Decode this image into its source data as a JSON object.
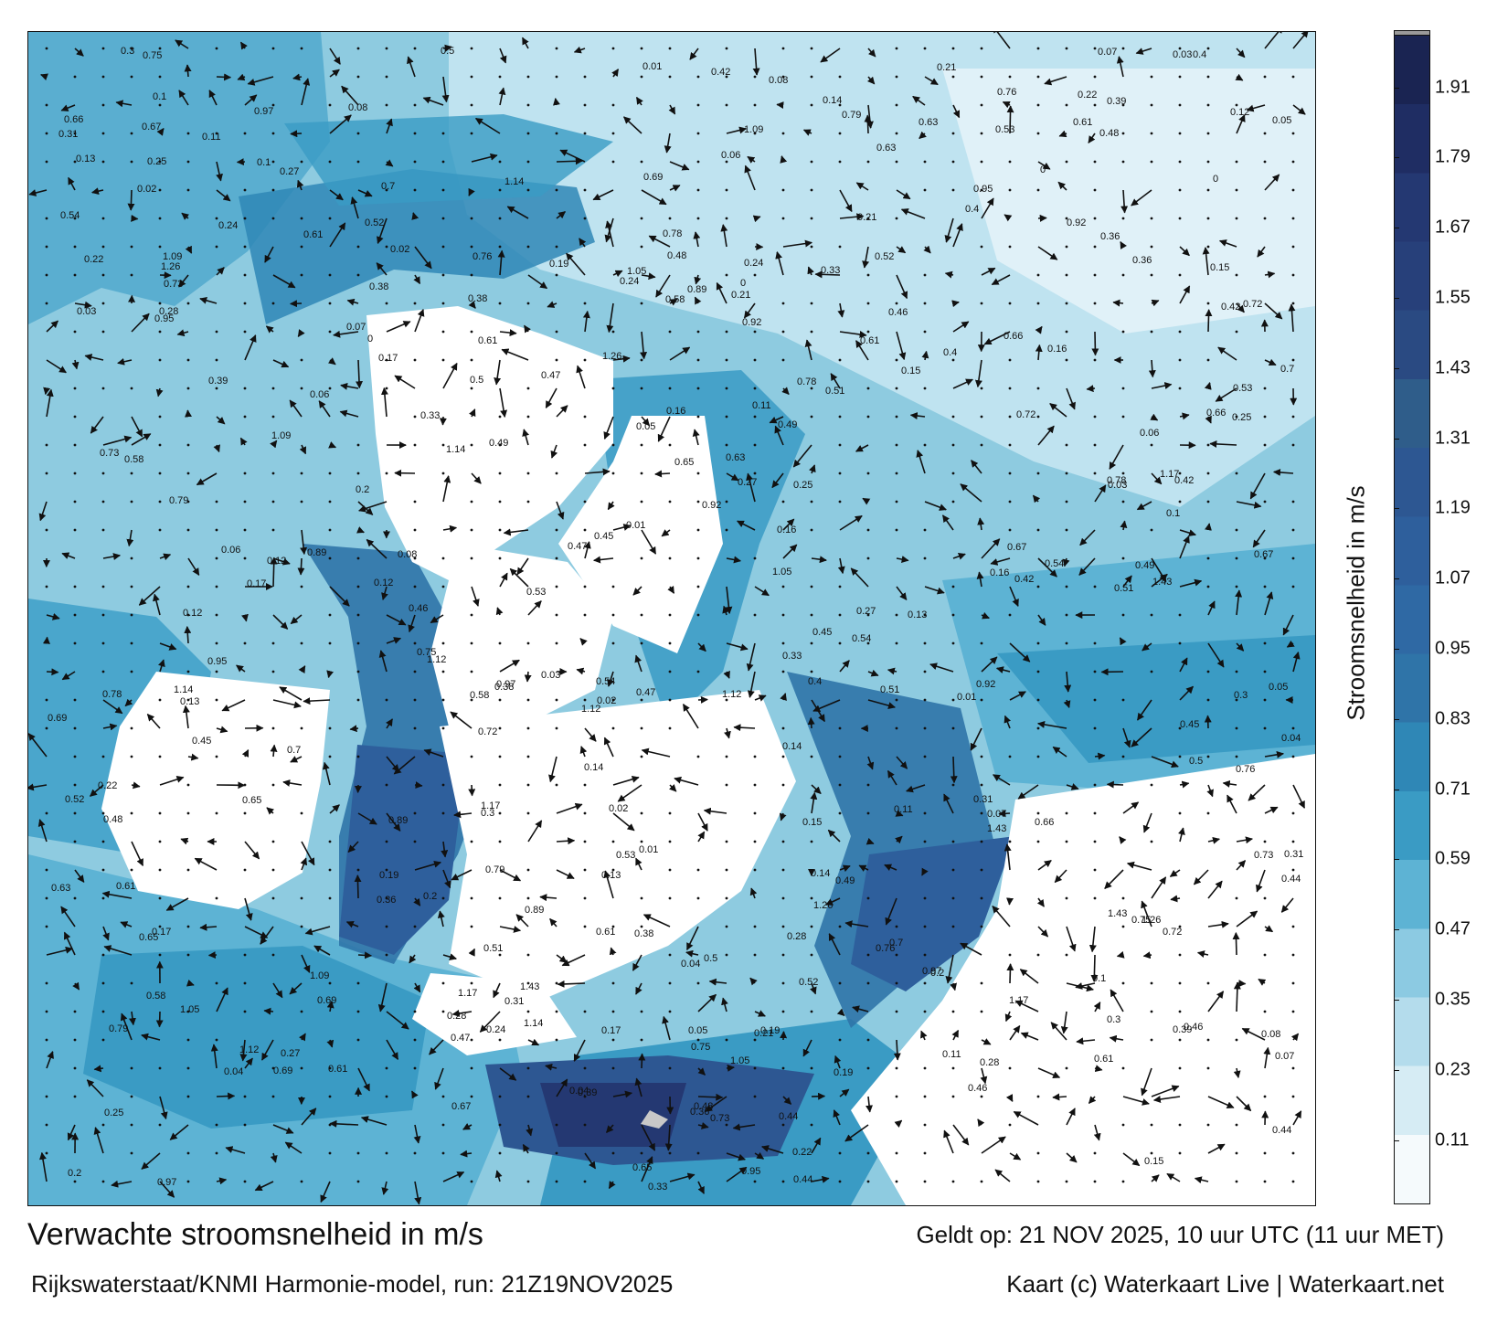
{
  "title": "Verwachte stroomsnelheid in m/s",
  "model": "Rijkswaterstaat/KNMI Harmonie-model, run: 21Z19NOV2025",
  "valid_time": "Geldt op: 21 NOV 2025, 10 uur UTC (11 uur MET)",
  "credit": "Kaart (c) Waterkaart Live | Waterkaart.net",
  "colorbar": {
    "label": "Stroomsnelheid in m/s",
    "ticks": [
      "0.11",
      "0.23",
      "0.35",
      "0.47",
      "0.59",
      "0.71",
      "0.83",
      "0.95",
      "1.07",
      "1.19",
      "1.31",
      "1.43",
      "1.55",
      "1.67",
      "1.79",
      "1.91"
    ],
    "colors": [
      "#f5fafc",
      "#d6ecf4",
      "#b4dcec",
      "#8ccae2",
      "#5db3d4",
      "#3a9bc4",
      "#2f87b6",
      "#2f74a8",
      "#2f69a4",
      "#2e5f9c",
      "#2d5792",
      "#2f5d8a",
      "#2a4a82",
      "#27407a",
      "#243872",
      "#1f2d63",
      "#1a2452"
    ],
    "range_min": 0,
    "range_max": 2.0
  },
  "sample_labels": [
    {
      "t": "0.28"
    },
    {
      "t": "0.25"
    },
    {
      "t": "0.22"
    },
    {
      "t": "0.21"
    },
    {
      "t": "0.19"
    },
    {
      "t": "0.16"
    },
    {
      "t": "0.17"
    },
    {
      "t": "0.14"
    },
    {
      "t": "0.11"
    },
    {
      "t": "0.12"
    },
    {
      "t": "0.42"
    },
    {
      "t": "0.44"
    },
    {
      "t": "0.49"
    },
    {
      "t": "0.63"
    },
    {
      "t": "0.65"
    },
    {
      "t": "0.67"
    },
    {
      "t": "0.61"
    },
    {
      "t": "0.52"
    },
    {
      "t": "0.48"
    },
    {
      "t": "0.39"
    },
    {
      "t": "0.36"
    },
    {
      "t": "0.45"
    },
    {
      "t": "0.46"
    },
    {
      "t": "0.38"
    },
    {
      "t": "0.33"
    },
    {
      "t": "0.31"
    },
    {
      "t": "0.92"
    },
    {
      "t": "0.72"
    },
    {
      "t": "0.7"
    },
    {
      "t": "0.51"
    },
    {
      "t": "0.89"
    },
    {
      "t": "0.78"
    },
    {
      "t": "0.97"
    },
    {
      "t": "0.95"
    },
    {
      "t": "1.09"
    },
    {
      "t": "1.12"
    },
    {
      "t": "0.76"
    },
    {
      "t": "0.47"
    },
    {
      "t": "1.14"
    },
    {
      "t": "1.17"
    },
    {
      "t": "1.26"
    },
    {
      "t": "1.43"
    },
    {
      "t": "1.05"
    },
    {
      "t": "0.73"
    },
    {
      "t": "0.69"
    },
    {
      "t": "0.79"
    },
    {
      "t": "0.75"
    },
    {
      "t": "0.66"
    },
    {
      "t": "0.58"
    },
    {
      "t": "0.61"
    },
    {
      "t": "0.5"
    },
    {
      "t": "0.53"
    },
    {
      "t": "0.54"
    },
    {
      "t": "0.4"
    },
    {
      "t": "0.3"
    },
    {
      "t": "0.27"
    },
    {
      "t": "0.24"
    },
    {
      "t": "0.2"
    },
    {
      "t": "0.15"
    },
    {
      "t": "0.1"
    },
    {
      "t": "0.08"
    },
    {
      "t": "0.07"
    },
    {
      "t": "0.06"
    },
    {
      "t": "0.05"
    },
    {
      "t": "0.04"
    },
    {
      "t": "0.03"
    },
    {
      "t": "0.02"
    },
    {
      "t": "0.01"
    },
    {
      "t": "0"
    },
    {
      "t": "0.13"
    }
  ]
}
